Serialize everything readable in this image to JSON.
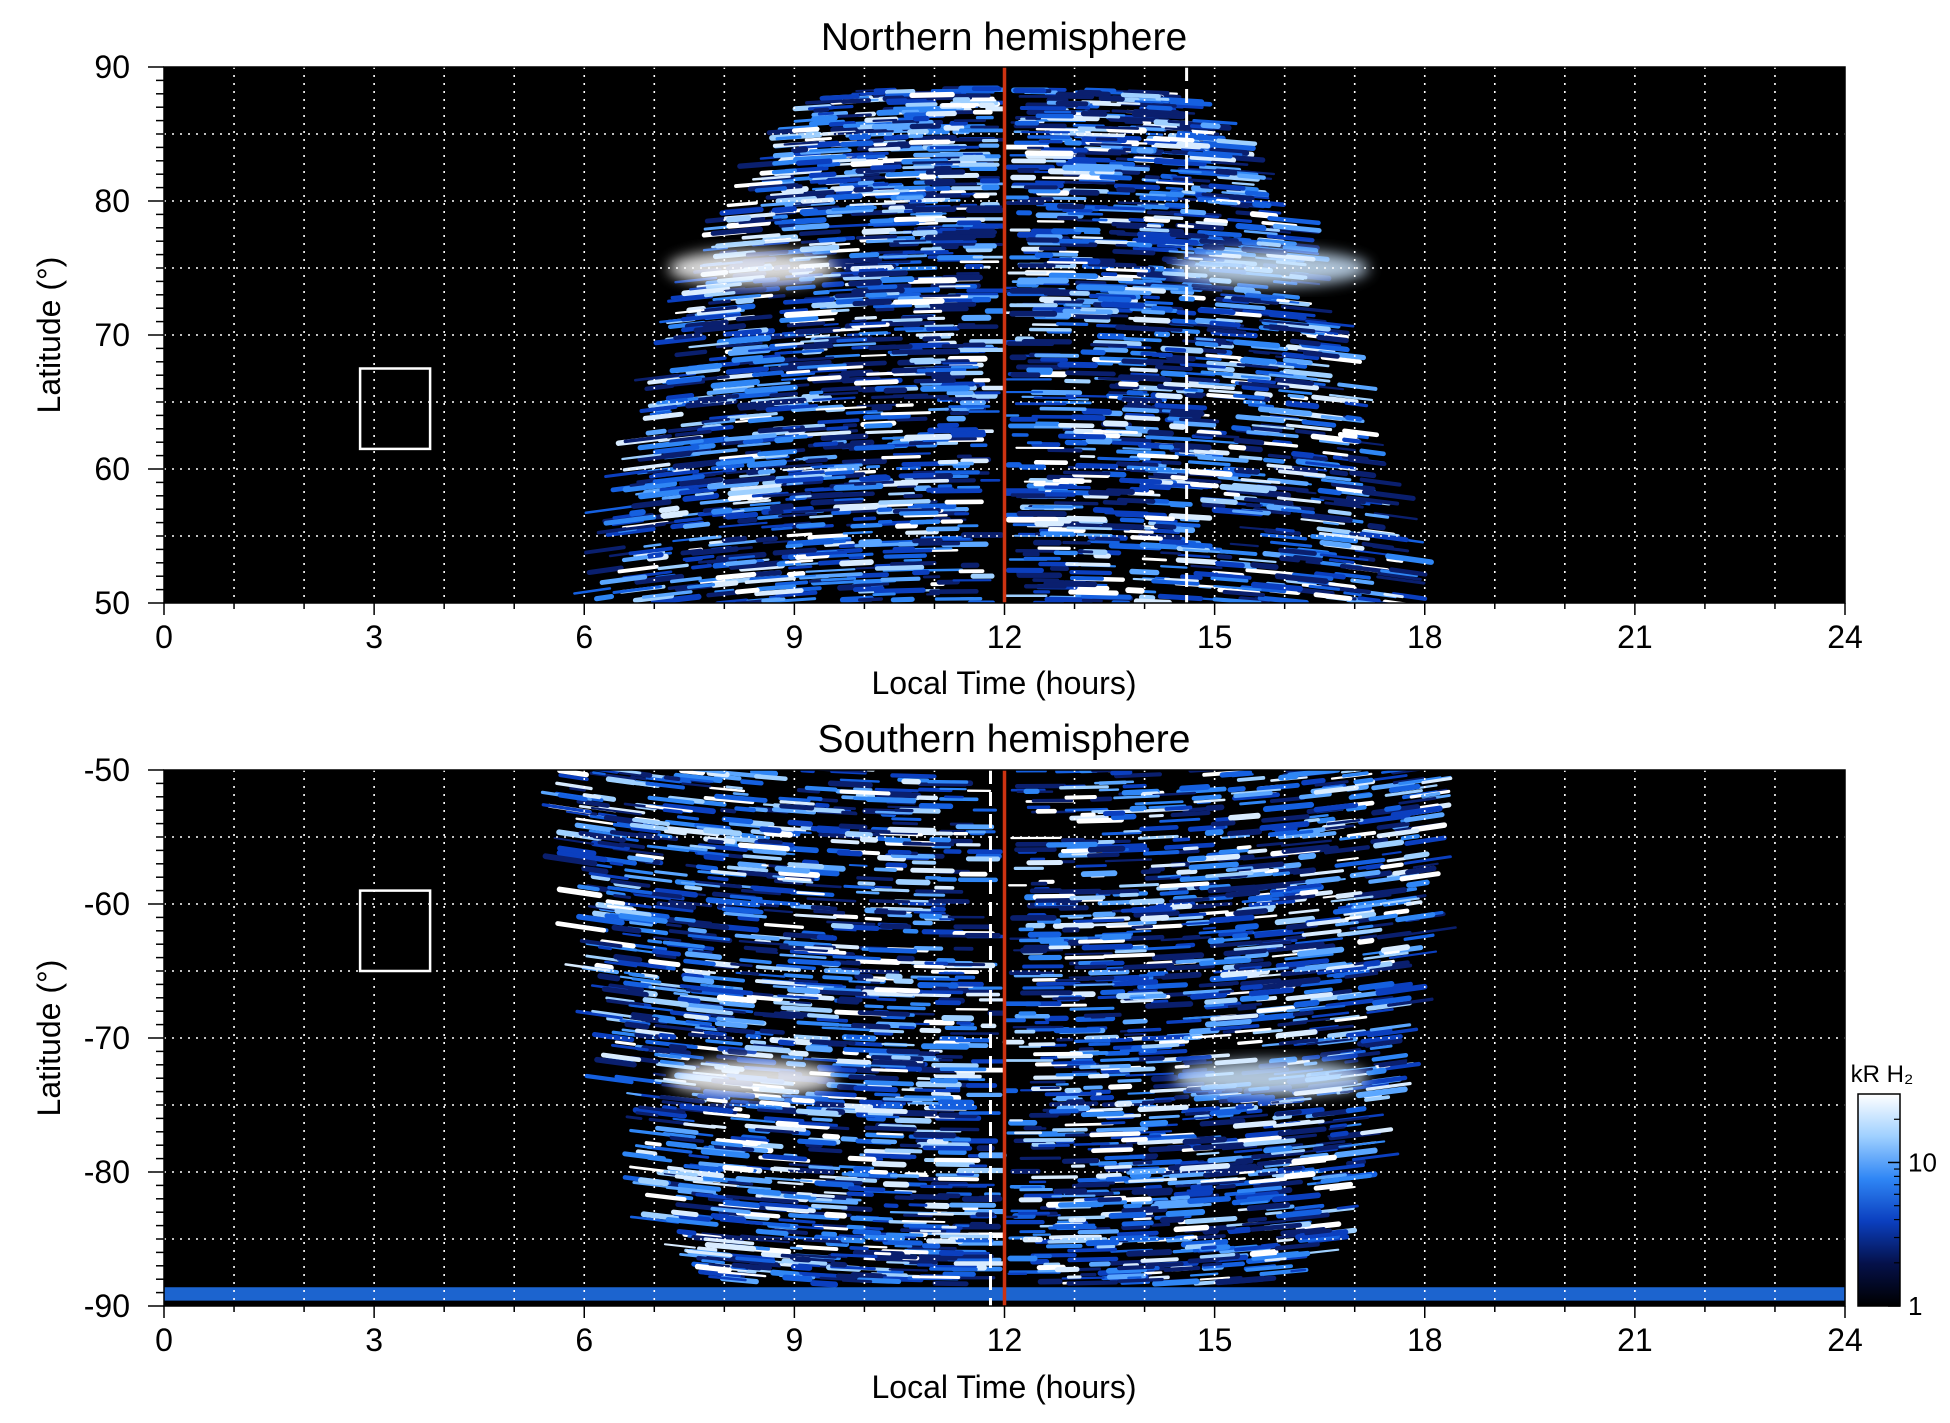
{
  "chart_data": [
    {
      "type": "heatmap",
      "title": "Northern hemisphere",
      "xlabel": "Local Time (hours)",
      "ylabel": "Latitude (°)",
      "xlim": [
        0,
        24
      ],
      "ylim": [
        50,
        90
      ],
      "xticks": [
        0,
        3,
        6,
        9,
        12,
        15,
        18,
        21,
        24
      ],
      "yticks": [
        50,
        60,
        70,
        80,
        90
      ],
      "grid": true,
      "emission_extent_local_time": [
        6.4,
        17.8
      ],
      "auroral_oval_latitude": 75,
      "reference_lines": [
        {
          "style": "solid",
          "color": "#cc3311",
          "x": 12.0
        },
        {
          "style": "dashed",
          "color": "#ffffff",
          "x": 14.6
        }
      ],
      "marked_box": {
        "local_time": [
          2.8,
          3.8
        ],
        "latitude": [
          61.5,
          67.5
        ]
      }
    },
    {
      "type": "heatmap",
      "title": "Southern hemisphere",
      "xlabel": "Local Time (hours)",
      "ylabel": "Latitude (°)",
      "xlim": [
        0,
        24
      ],
      "ylim": [
        -90,
        -50
      ],
      "xticks": [
        0,
        3,
        6,
        9,
        12,
        15,
        18,
        21,
        24
      ],
      "yticks": [
        -90,
        -80,
        -70,
        -60,
        -50
      ],
      "grid": true,
      "emission_extent_local_time": [
        6.0,
        18.2
      ],
      "auroral_oval_latitude": -73,
      "reference_lines": [
        {
          "style": "solid",
          "color": "#cc3311",
          "x": 12.0
        },
        {
          "style": "dashed",
          "color": "#ffffff",
          "x": 11.8
        }
      ],
      "marked_box": {
        "local_time": [
          2.8,
          3.8
        ],
        "latitude": [
          -65,
          -59
        ]
      }
    }
  ],
  "colorbar": {
    "title": "kR H₂",
    "scale": "log",
    "range": [
      1,
      30
    ],
    "ticks": [
      1,
      10
    ],
    "colors": [
      "#000000",
      "#05114a",
      "#0b3fbf",
      "#2f86f5",
      "#9fd0ff",
      "#ffffff"
    ]
  }
}
